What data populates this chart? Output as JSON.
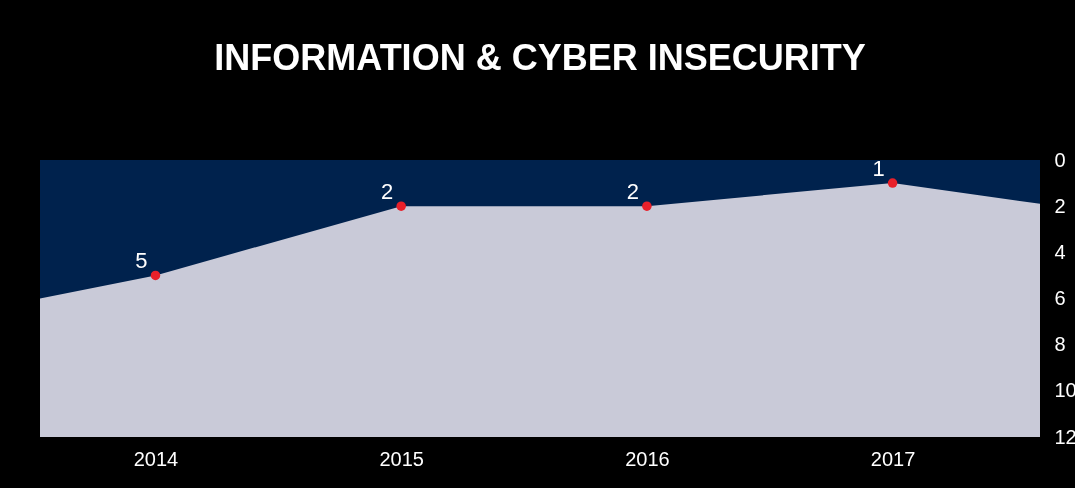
{
  "chart_data": {
    "type": "area",
    "title": "INFORMATION & CYBER INSECURITY",
    "xlim": [
      2013.53,
      2017.6
    ],
    "xticks": [
      2014,
      2015,
      2016,
      2017
    ],
    "ylim": [
      12,
      0
    ],
    "yticks": [
      0,
      2,
      4,
      6,
      8,
      10,
      12
    ],
    "grid": false,
    "series": [
      {
        "color": "#00224d",
        "x": [
          2013.53,
          2014,
          2015,
          2016,
          2017,
          2017.6
        ],
        "values": [
          6,
          5,
          2,
          2,
          1,
          1.9
        ]
      },
      {
        "type": "scatter",
        "color": "#e8202a",
        "marker": "circle",
        "x": [
          2014,
          2015,
          2016,
          2017
        ],
        "values": [
          5,
          2,
          2,
          1
        ],
        "value_labels": [
          "5",
          "2",
          "2",
          "1"
        ]
      }
    ]
  }
}
